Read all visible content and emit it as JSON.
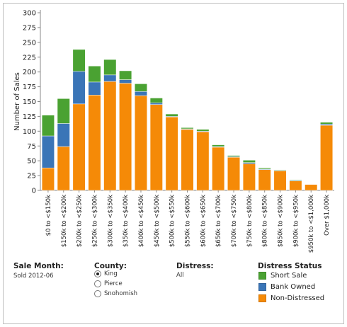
{
  "chart_data": {
    "type": "bar",
    "stacked": true,
    "ylabel": "Number of Sales",
    "ylim": [
      0,
      300
    ],
    "yticks": [
      0,
      25,
      50,
      75,
      100,
      125,
      150,
      175,
      200,
      225,
      250,
      275,
      300
    ],
    "grid": false,
    "legend_position": "bottom-right",
    "categories": [
      "$0 to <$150k",
      "$150k to <$200k",
      "$200k to <$250k",
      "$250k to <$300k",
      "$300k to <$350k",
      "$350k to <$400k",
      "$400k to <$450k",
      "$450k to <$500k",
      "$500k to <$550k",
      "$550k to <$600k",
      "$600k to <$650k",
      "$650k to <$700k",
      "$700k to <$750k",
      "$750k to <$800k",
      "$800k to <$850k",
      "$850k to <$900k",
      "$900k to <$950k",
      "$950k to <$1,000k",
      "Over $1,000k"
    ],
    "series": [
      {
        "name": "Non-Distressed",
        "color": "#f58a07",
        "values": [
          38,
          74,
          146,
          161,
          184,
          181,
          160,
          145,
          124,
          103,
          99,
          73,
          56,
          45,
          35,
          33,
          16,
          10,
          110
        ]
      },
      {
        "name": "Bank Owned",
        "color": "#3a75b7",
        "values": [
          54,
          39,
          55,
          22,
          11,
          6,
          7,
          3,
          1,
          1,
          1,
          1,
          1,
          2,
          1,
          1,
          1,
          0,
          2
        ]
      },
      {
        "name": "Short Sale",
        "color": "#4aa232",
        "values": [
          35,
          42,
          37,
          27,
          26,
          15,
          13,
          8,
          4,
          2,
          3,
          3,
          2,
          4,
          2,
          1,
          1,
          0,
          3
        ]
      }
    ]
  },
  "filters": {
    "sale_month": {
      "title": "Sale Month:",
      "value": "Sold 2012-06"
    },
    "county": {
      "title": "County:",
      "options": [
        "King",
        "Pierce",
        "Snohomish"
      ],
      "selected": "King"
    },
    "distress": {
      "title": "Distress:",
      "value": "All"
    }
  },
  "legend": {
    "title": "Distress Status",
    "items": [
      {
        "label": "Short Sale",
        "color": "#4aa232"
      },
      {
        "label": "Bank Owned",
        "color": "#3a75b7"
      },
      {
        "label": "Non-Distressed",
        "color": "#f58a07"
      }
    ]
  }
}
